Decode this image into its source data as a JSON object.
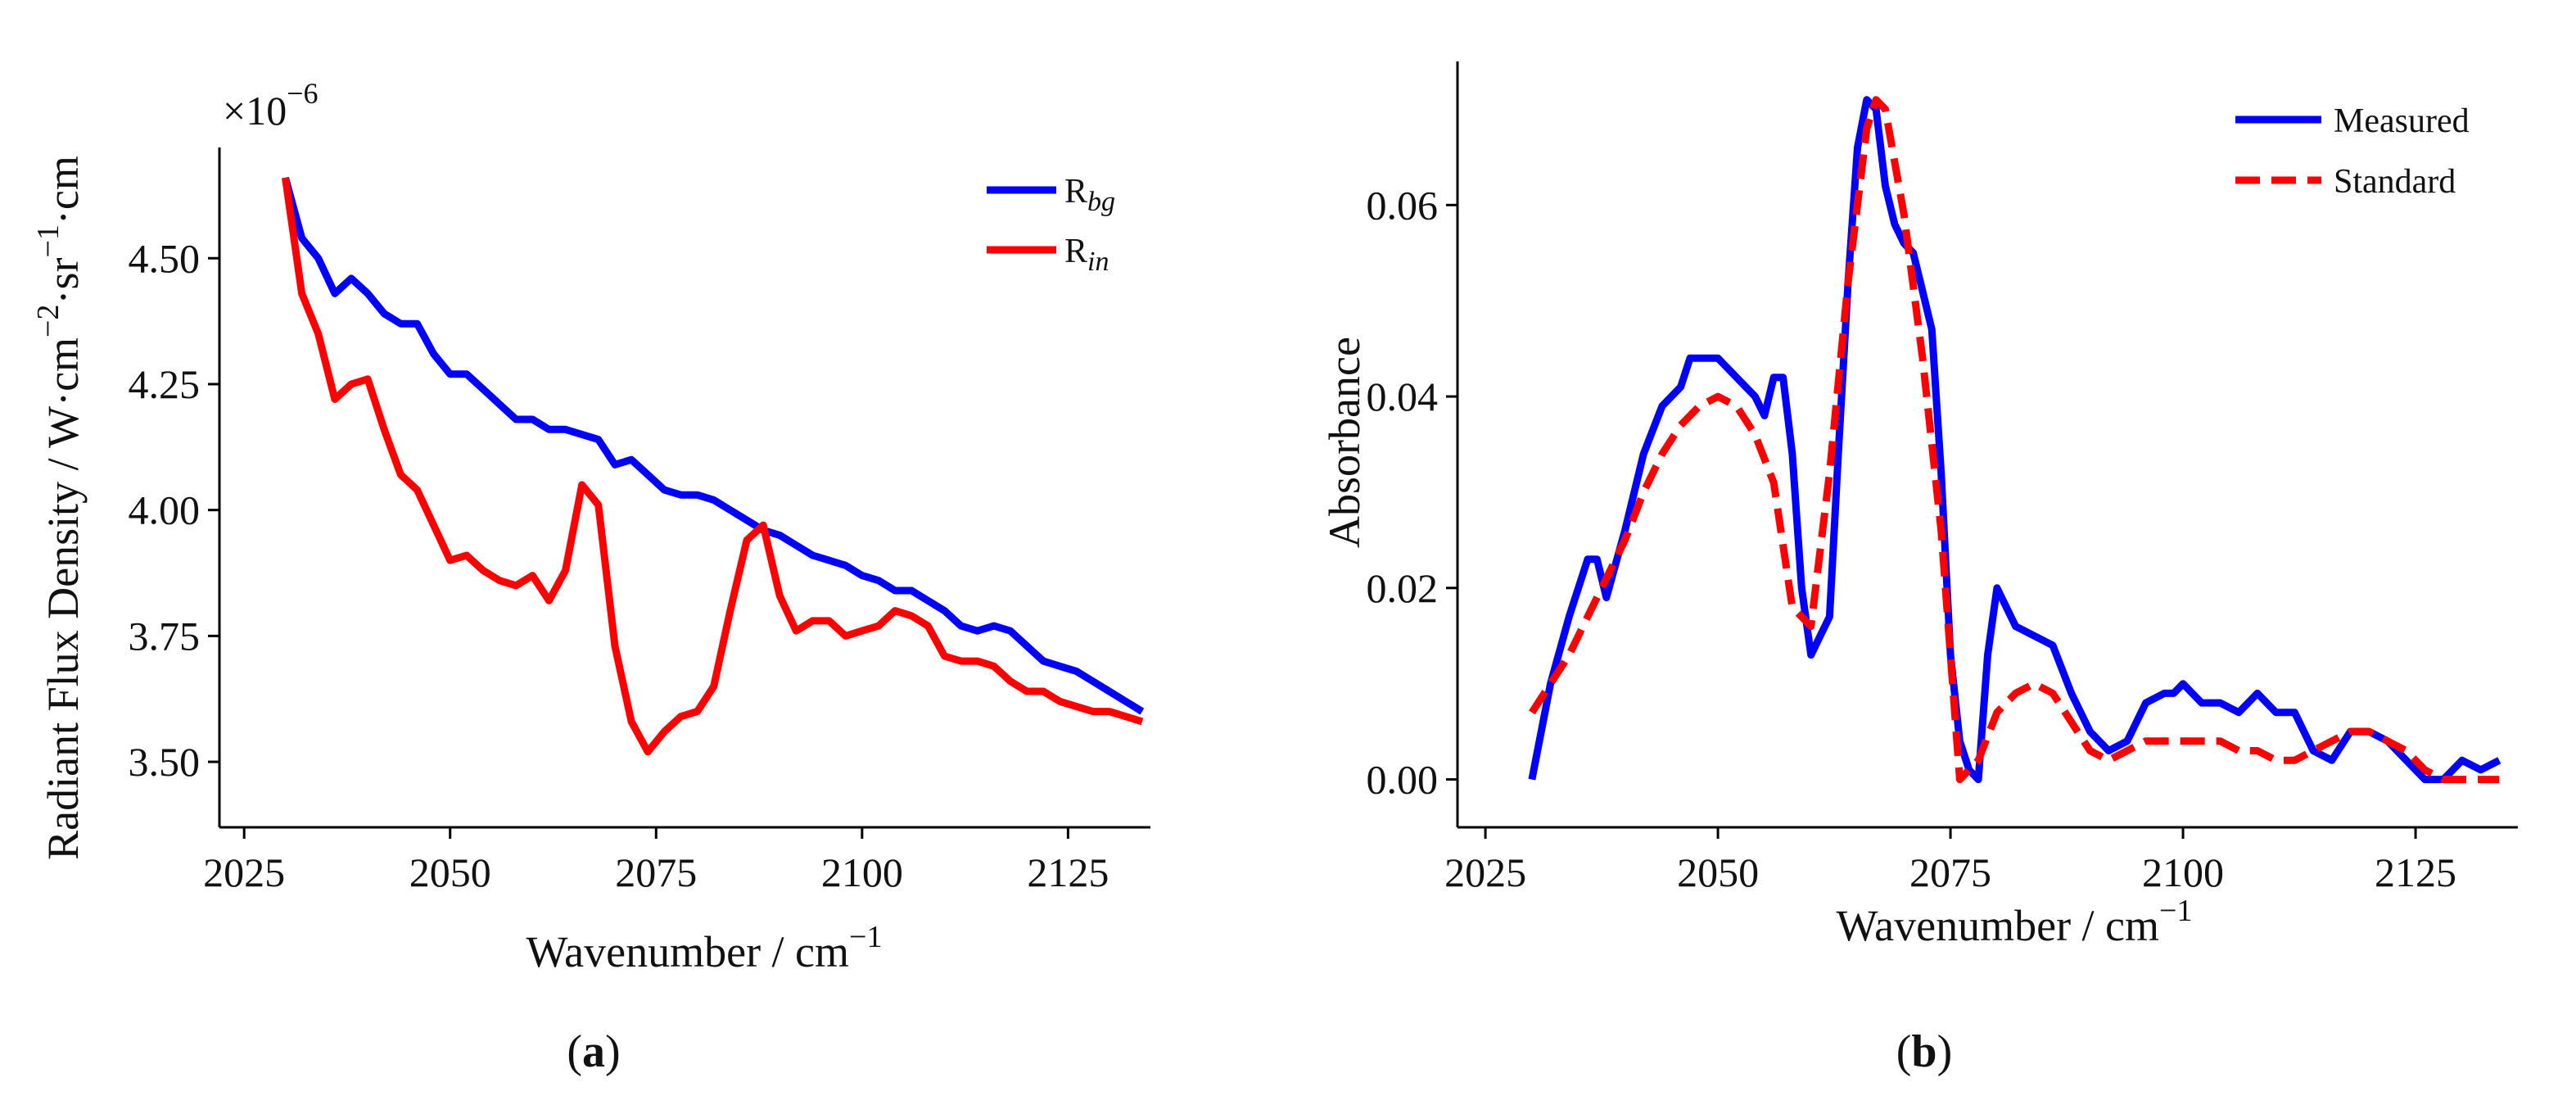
{
  "chart_data": [
    {
      "panel": "a",
      "type": "line",
      "panel_label_open": "(",
      "panel_label_letter": "a",
      "panel_label_close": ")",
      "xlabel": "Wavenumber / cm",
      "xlabel_sup": "−1",
      "ylabel": "Radiant Flux Density / W·cm",
      "ylabel_parts": [
        "Radiant Flux Density / W·cm",
        "−2",
        "·sr",
        "−1",
        "·cm"
      ],
      "y_scale_text": "×10",
      "y_scale_exp": "−6",
      "xlim": [
        2022,
        2135
      ],
      "ylim": [
        3.37,
        4.72
      ],
      "xticks": [
        2025,
        2050,
        2075,
        2100,
        2125
      ],
      "yticks": [
        3.5,
        3.75,
        4.0,
        4.25,
        4.5
      ],
      "ytick_labels": [
        "3.50",
        "3.75",
        "4.00",
        "4.25",
        "4.50"
      ],
      "legend_position": "top-right",
      "series": [
        {
          "name": "R_bg",
          "legend_base": "R",
          "legend_sub": "bg",
          "color": "#0000ff",
          "dashed": false,
          "x": [
            2030,
            2032,
            2034,
            2036,
            2038,
            2040,
            2042,
            2044,
            2046,
            2048,
            2050,
            2052,
            2054,
            2056,
            2058,
            2060,
            2062,
            2064,
            2066,
            2068,
            2070,
            2072,
            2074,
            2076,
            2078,
            2080,
            2082,
            2084,
            2086,
            2088,
            2090,
            2092,
            2094,
            2096,
            2098,
            2100,
            2102,
            2104,
            2106,
            2108,
            2110,
            2112,
            2114,
            2116,
            2118,
            2120,
            2122,
            2124,
            2126,
            2128,
            2130,
            2132,
            2134
          ],
          "values": [
            4.66,
            4.54,
            4.5,
            4.43,
            4.46,
            4.43,
            4.39,
            4.37,
            4.37,
            4.31,
            4.27,
            4.27,
            4.24,
            4.21,
            4.18,
            4.18,
            4.16,
            4.16,
            4.15,
            4.14,
            4.09,
            4.1,
            4.07,
            4.04,
            4.03,
            4.03,
            4.02,
            4.0,
            3.98,
            3.96,
            3.95,
            3.93,
            3.91,
            3.9,
            3.89,
            3.87,
            3.86,
            3.84,
            3.84,
            3.82,
            3.8,
            3.77,
            3.76,
            3.77,
            3.76,
            3.73,
            3.7,
            3.69,
            3.68,
            3.66,
            3.64,
            3.62,
            3.6
          ]
        },
        {
          "name": "R_in",
          "legend_base": "R",
          "legend_sub": "in",
          "color": "#ff0000",
          "dashed": false,
          "x": [
            2030,
            2032,
            2034,
            2036,
            2038,
            2040,
            2042,
            2044,
            2046,
            2048,
            2050,
            2052,
            2054,
            2056,
            2058,
            2060,
            2062,
            2064,
            2066,
            2068,
            2070,
            2072,
            2074,
            2076,
            2078,
            2080,
            2082,
            2084,
            2086,
            2088,
            2090,
            2092,
            2094,
            2096,
            2098,
            2100,
            2102,
            2104,
            2106,
            2108,
            2110,
            2112,
            2114,
            2116,
            2118,
            2120,
            2122,
            2124,
            2126,
            2128,
            2130,
            2132,
            2134
          ],
          "values": [
            4.66,
            4.43,
            4.35,
            4.22,
            4.25,
            4.26,
            4.16,
            4.07,
            4.04,
            3.97,
            3.9,
            3.91,
            3.88,
            3.86,
            3.85,
            3.87,
            3.82,
            3.88,
            4.05,
            4.01,
            3.73,
            3.58,
            3.52,
            3.56,
            3.59,
            3.6,
            3.65,
            3.8,
            3.94,
            3.97,
            3.83,
            3.76,
            3.78,
            3.78,
            3.75,
            3.76,
            3.77,
            3.8,
            3.79,
            3.77,
            3.71,
            3.7,
            3.7,
            3.69,
            3.66,
            3.64,
            3.64,
            3.62,
            3.61,
            3.6,
            3.6,
            3.59,
            3.58
          ]
        }
      ]
    },
    {
      "panel": "b",
      "type": "line",
      "panel_label_open": "(",
      "panel_label_letter": "b",
      "panel_label_close": ")",
      "xlabel": "Wavenumber / cm",
      "xlabel_sup": "−1",
      "ylabel": "Absorbance",
      "xlim": [
        2022,
        2136
      ],
      "ylim": [
        -0.005,
        0.075
      ],
      "xticks": [
        2025,
        2050,
        2075,
        2100,
        2125
      ],
      "yticks": [
        0.0,
        0.02,
        0.04,
        0.06
      ],
      "ytick_labels": [
        "0.00",
        "0.02",
        "0.04",
        "0.06"
      ],
      "legend_position": "top-right",
      "series": [
        {
          "name": "Measured",
          "color": "#0000ff",
          "dashed": false,
          "x": [
            2030,
            2032,
            2034,
            2036,
            2037,
            2038,
            2040,
            2042,
            2044,
            2046,
            2047,
            2048,
            2050,
            2052,
            2054,
            2055,
            2056,
            2057,
            2058,
            2059,
            2060,
            2061,
            2062,
            2063,
            2064,
            2065,
            2066,
            2067,
            2068,
            2069,
            2070,
            2071,
            2072,
            2073,
            2074,
            2075,
            2076,
            2077,
            2078,
            2079,
            2080,
            2082,
            2084,
            2086,
            2088,
            2090,
            2092,
            2094,
            2096,
            2098,
            2099,
            2100,
            2102,
            2104,
            2106,
            2108,
            2110,
            2112,
            2114,
            2116,
            2118,
            2120,
            2122,
            2124,
            2126,
            2128,
            2130,
            2132,
            2134
          ],
          "values": [
            0.0,
            0.01,
            0.017,
            0.023,
            0.023,
            0.019,
            0.026,
            0.034,
            0.039,
            0.041,
            0.044,
            0.044,
            0.044,
            0.042,
            0.04,
            0.038,
            0.042,
            0.042,
            0.034,
            0.02,
            0.013,
            0.015,
            0.017,
            0.035,
            0.052,
            0.066,
            0.071,
            0.07,
            0.062,
            0.058,
            0.056,
            0.055,
            0.051,
            0.047,
            0.032,
            0.013,
            0.004,
            0.001,
            0.0,
            0.013,
            0.02,
            0.016,
            0.015,
            0.014,
            0.009,
            0.005,
            0.003,
            0.004,
            0.008,
            0.009,
            0.009,
            0.01,
            0.008,
            0.008,
            0.007,
            0.009,
            0.007,
            0.007,
            0.003,
            0.002,
            0.005,
            0.005,
            0.004,
            0.002,
            0.0,
            0.0,
            0.002,
            0.001,
            0.002
          ]
        },
        {
          "name": "Standard",
          "color": "#ff0000",
          "dashed": true,
          "x": [
            2030,
            2032,
            2034,
            2036,
            2038,
            2040,
            2042,
            2044,
            2046,
            2048,
            2050,
            2052,
            2054,
            2056,
            2058,
            2060,
            2062,
            2064,
            2066,
            2067,
            2068,
            2070,
            2072,
            2074,
            2076,
            2078,
            2080,
            2082,
            2084,
            2086,
            2088,
            2090,
            2092,
            2094,
            2096,
            2098,
            2100,
            2102,
            2104,
            2106,
            2108,
            2110,
            2112,
            2114,
            2116,
            2118,
            2120,
            2122,
            2124,
            2126,
            2128,
            2130,
            2132,
            2134
          ],
          "values": [
            0.007,
            0.01,
            0.013,
            0.017,
            0.021,
            0.025,
            0.03,
            0.034,
            0.037,
            0.039,
            0.04,
            0.039,
            0.036,
            0.031,
            0.018,
            0.016,
            0.032,
            0.052,
            0.068,
            0.071,
            0.07,
            0.059,
            0.044,
            0.026,
            0.0,
            0.002,
            0.007,
            0.009,
            0.01,
            0.009,
            0.006,
            0.003,
            0.002,
            0.003,
            0.004,
            0.004,
            0.004,
            0.004,
            0.004,
            0.003,
            0.003,
            0.002,
            0.002,
            0.003,
            0.004,
            0.005,
            0.005,
            0.004,
            0.003,
            0.001,
            0.0,
            0.0,
            0.0,
            0.0
          ]
        }
      ]
    }
  ]
}
